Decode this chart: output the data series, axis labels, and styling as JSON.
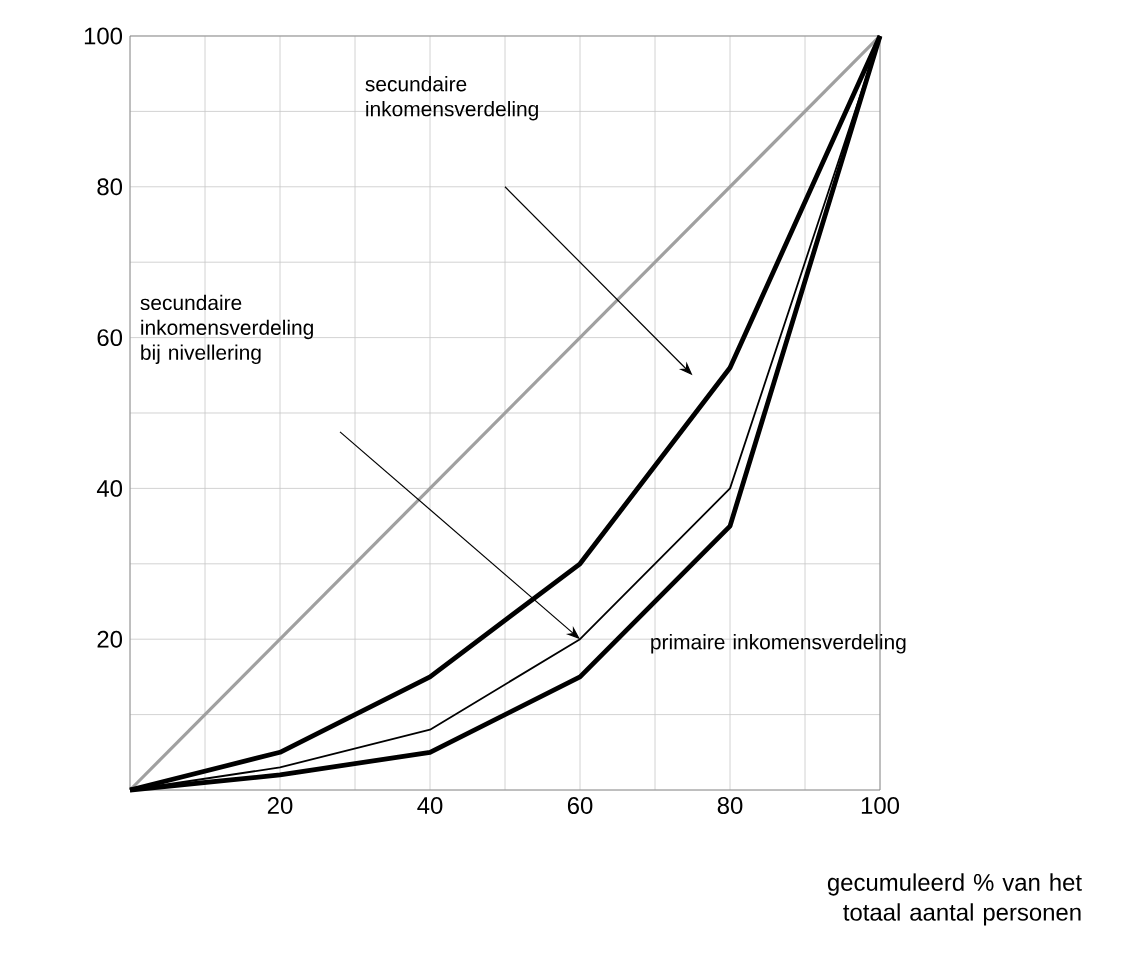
{
  "chart_data": {
    "type": "line",
    "xlabel": "gecumuleerd % van het totaal aantal personen",
    "x": [
      0,
      20,
      40,
      60,
      80,
      100
    ],
    "xlim": [
      0,
      100
    ],
    "ylim": [
      0,
      100
    ],
    "xticks": [
      {
        "value": 0,
        "label": null
      },
      {
        "value": 10,
        "label": null
      },
      20,
      {
        "value": 30,
        "label": null
      },
      40,
      {
        "value": 50,
        "label": null
      },
      60,
      {
        "value": 70,
        "label": null
      },
      80,
      {
        "value": 90,
        "label": null
      },
      100
    ],
    "yticks": [
      {
        "value": 0,
        "label": null
      },
      {
        "value": 10,
        "label": null
      },
      20,
      {
        "value": 30,
        "label": null
      },
      40,
      {
        "value": 50,
        "label": null
      },
      60,
      {
        "value": 70,
        "label": null
      },
      80,
      {
        "value": 90,
        "label": null
      },
      100
    ],
    "grid": true,
    "series": [
      {
        "color": "#a0a0a0",
        "x": [
          0,
          100
        ],
        "values": [
          0,
          100
        ]
      },
      {
        "color": "#000000",
        "values": [
          0,
          5,
          15,
          30,
          56,
          100
        ]
      },
      {
        "color": "#000000",
        "values": [
          0,
          3,
          8,
          20,
          40,
          100
        ]
      },
      {
        "color": "#000000",
        "values": [
          0,
          2,
          5,
          15,
          35,
          100
        ]
      }
    ],
    "annotations": [
      "secundaire inkomensverdeling",
      "secundaire inkomensverdeling bij nivellering",
      "primaire inkomensverdeling"
    ]
  }
}
